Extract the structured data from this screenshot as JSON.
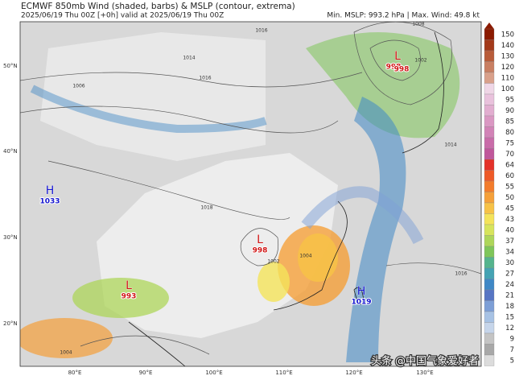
{
  "header": {
    "title": "ECMWF 850mb Wind (shaded, barbs) & MSLP (contour, extrema)",
    "subtitle": "2025/06/19 Thu 00Z [+0h] valid at 2025/06/19 Thu 00Z",
    "stats": "Min. MSLP: 993.2 hPa | Max. Wind: 49.8 kt"
  },
  "map": {
    "lat_labels": [
      "50°N",
      "40°N",
      "30°N",
      "20°N"
    ],
    "lon_labels": [
      "80°E",
      "90°E",
      "100°E",
      "110°E",
      "120°E",
      "130°E"
    ],
    "centers": [
      {
        "type": "H",
        "values": [
          1033
        ]
      },
      {
        "type": "L",
        "values": [
          998
        ]
      },
      {
        "type": "L",
        "values": [
          993
        ]
      },
      {
        "type": "H",
        "values": [
          1019
        ]
      },
      {
        "type": "L",
        "values": [
          998,
          998
        ]
      }
    ],
    "isobar_labels": [
      1016,
      1014,
      1006,
      1008,
      1002,
      1016,
      1018,
      1014,
      1016,
      1004,
      1002,
      1004
    ]
  },
  "colorbar": {
    "levels": [
      150,
      140,
      130,
      120,
      110,
      100,
      95,
      90,
      85,
      80,
      75,
      70,
      64,
      60,
      55,
      50,
      45,
      43,
      40,
      37,
      34,
      30,
      27,
      24,
      21,
      18,
      15,
      12,
      9,
      7,
      5
    ],
    "colors": [
      "#8b1a00",
      "#a33a1a",
      "#b85c3a",
      "#c97f62",
      "#d9a08a",
      "#efd6e6",
      "#e9c2dc",
      "#e2aed0",
      "#da98c3",
      "#d283b7",
      "#c96ca9",
      "#c0579b",
      "#e4322a",
      "#ee5a28",
      "#f37c2c",
      "#f5a03a",
      "#f7c247",
      "#f4e35a",
      "#d7e45c",
      "#aed65a",
      "#7fc65a",
      "#55b48d",
      "#45a3b3",
      "#3f88c6",
      "#5775c4",
      "#7d9fd6",
      "#a7c2e4",
      "#c6d5ea",
      "#c4c4c4",
      "#a8a8a8",
      "#dcdcdc"
    ]
  },
  "watermark": "头条 @中国气象爱好者"
}
